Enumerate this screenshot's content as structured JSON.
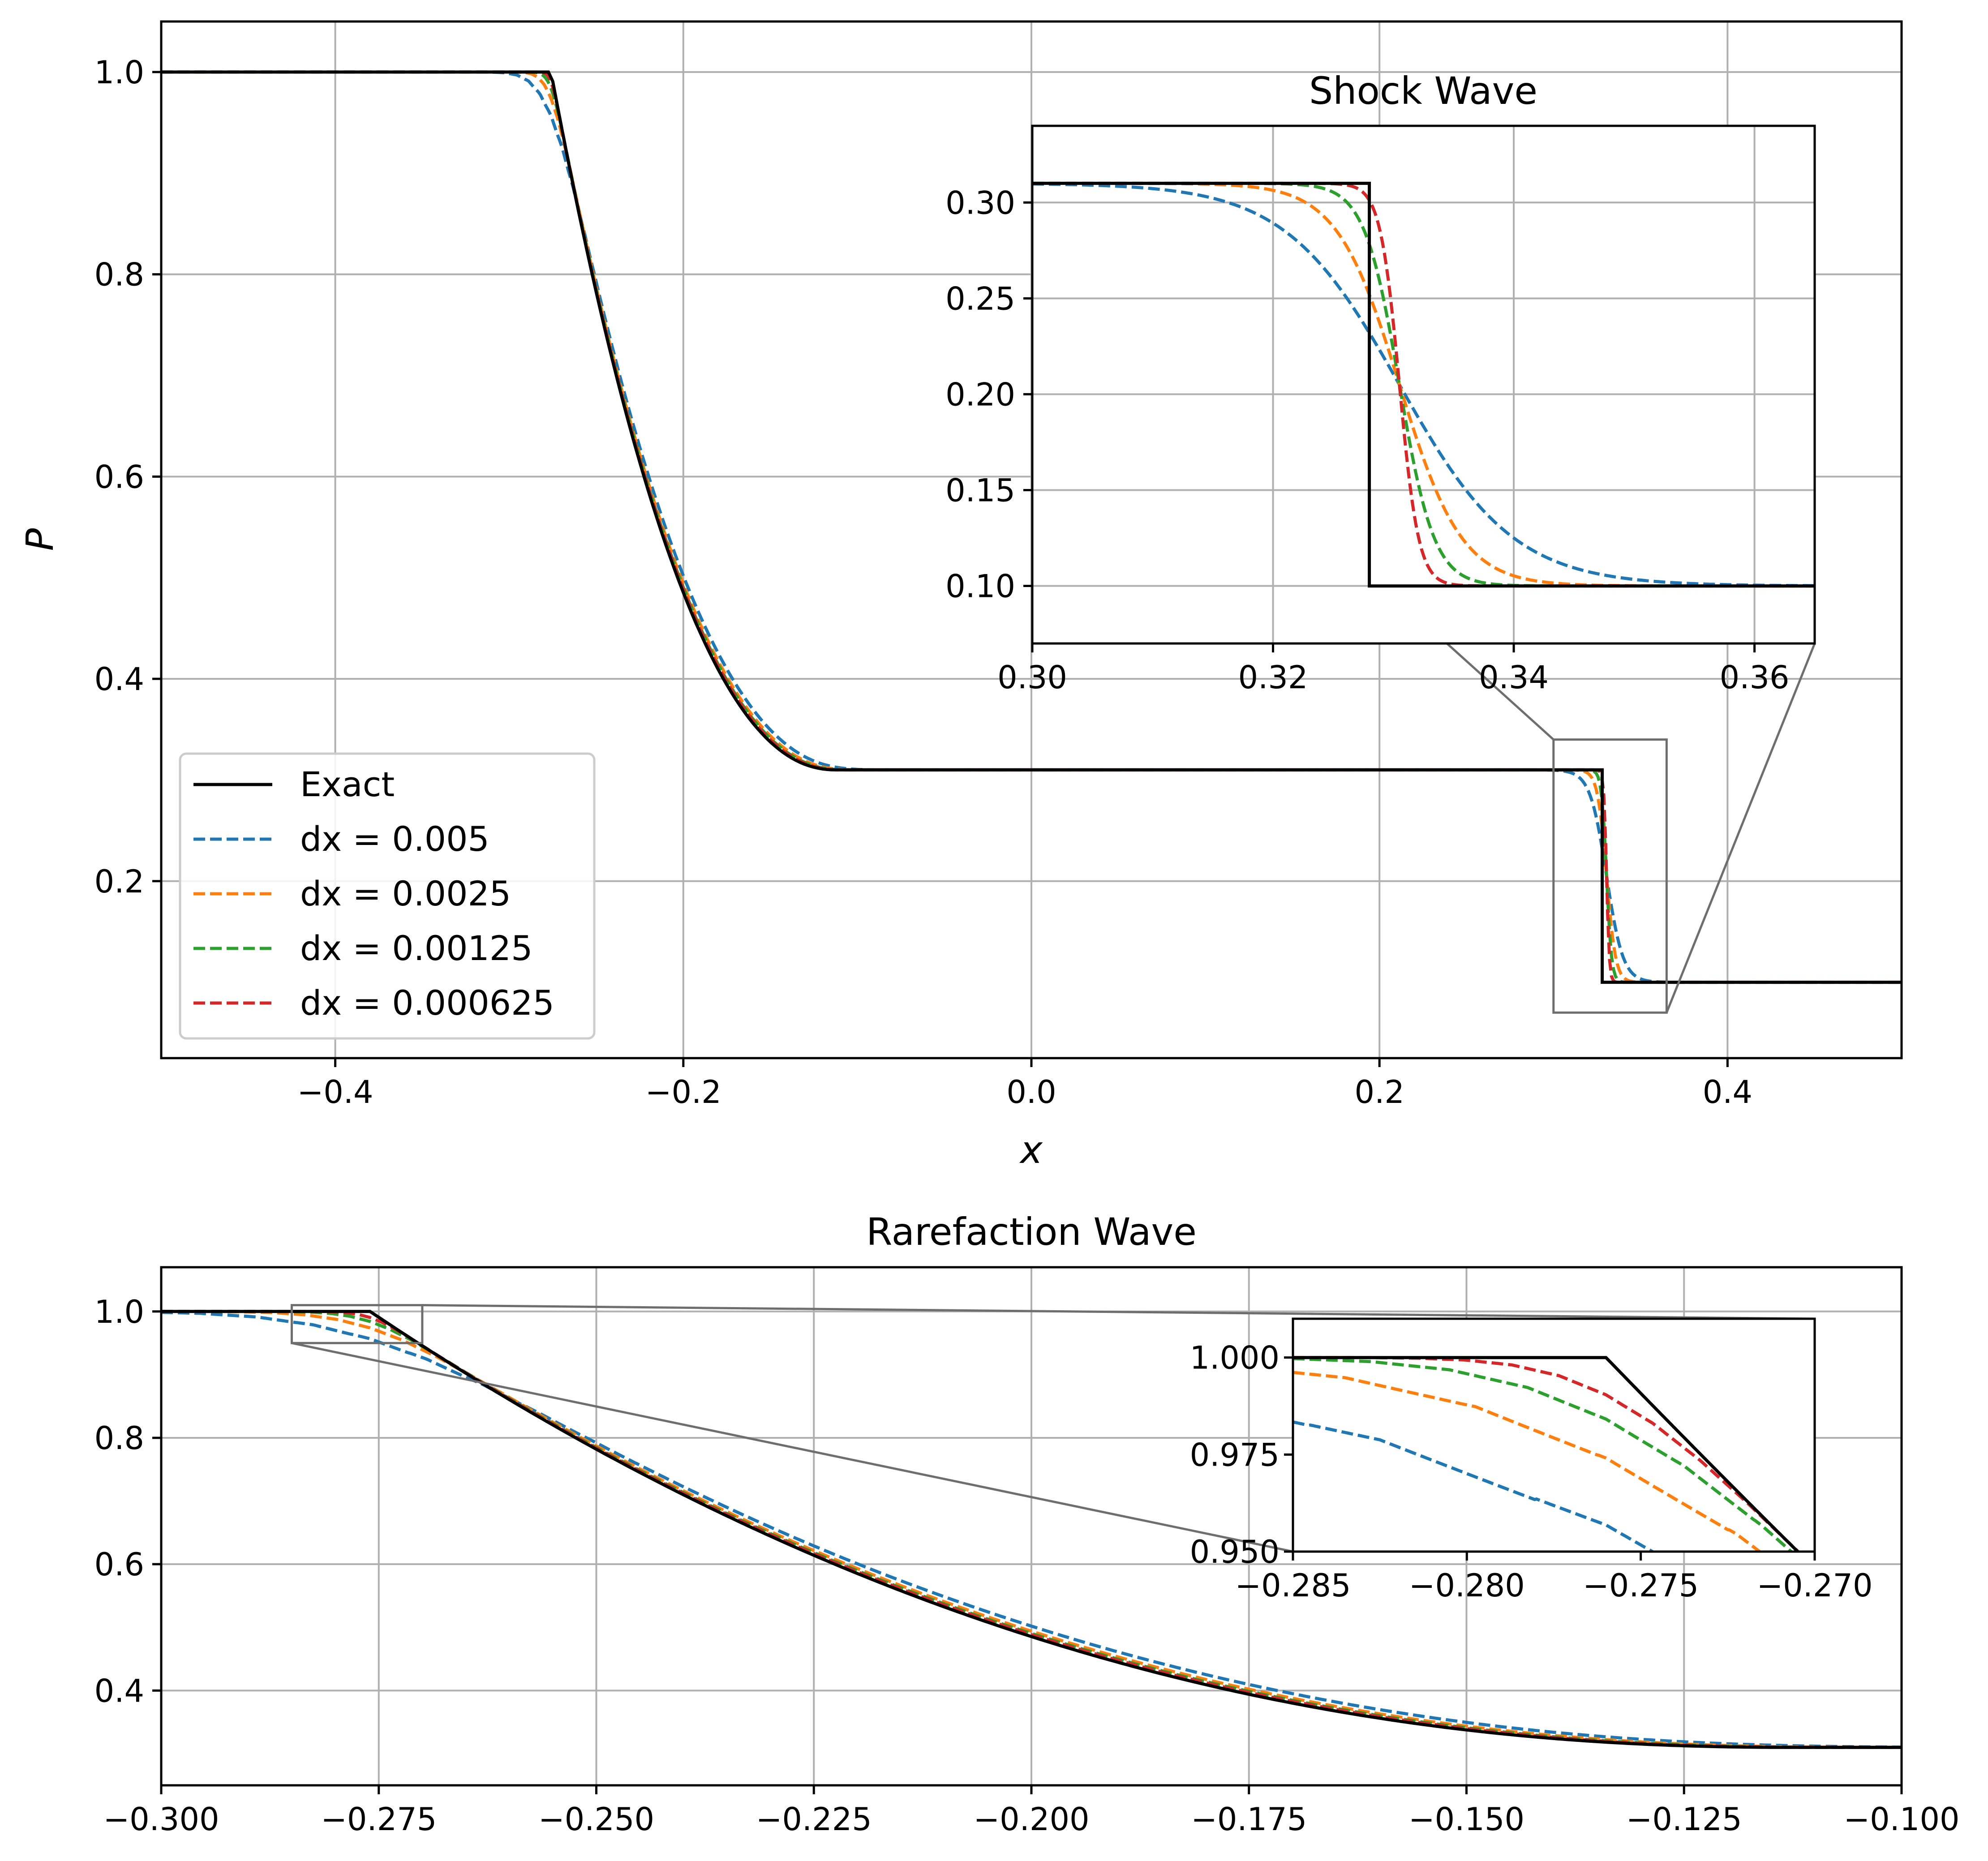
{
  "chart_data": [
    {
      "type": "line",
      "xlabel": "x",
      "ylabel": "P",
      "xlim": [
        -0.5,
        0.5
      ],
      "ylim": [
        0.025,
        1.05
      ],
      "xticks": [
        -0.4,
        -0.2,
        0.0,
        0.2,
        0.4
      ],
      "xtick_labels": [
        "−0.4",
        "−0.2",
        "0.0",
        "0.2",
        "0.4"
      ],
      "yticks": [
        0.2,
        0.4,
        0.6,
        0.8,
        1.0
      ],
      "ytick_labels": [
        "0.2",
        "0.4",
        "0.6",
        "0.8",
        "1.0"
      ],
      "grid": true,
      "legend_position": "lower-left",
      "series": [
        {
          "name": "Exact",
          "color": "#000000",
          "style": "solid"
        },
        {
          "name": "dx = 0.005",
          "color": "#1f77b4",
          "style": "dashed"
        },
        {
          "name": "dx = 0.0025",
          "color": "#ff7f0e",
          "style": "dashed"
        },
        {
          "name": "dx = 0.00125",
          "color": "#2ca02c",
          "style": "dashed"
        },
        {
          "name": "dx = 0.000625",
          "color": "#d62728",
          "style": "dashed"
        }
      ],
      "exact_points": [
        [
          -0.5,
          1.0
        ],
        [
          -0.276,
          1.0
        ],
        [
          -0.25,
          0.79
        ],
        [
          -0.225,
          0.655
        ],
        [
          -0.2,
          0.54
        ],
        [
          -0.175,
          0.455
        ],
        [
          -0.15,
          0.39
        ],
        [
          -0.125,
          0.33
        ],
        [
          -0.112,
          0.31
        ],
        [
          0.328,
          0.31
        ],
        [
          0.328,
          0.1
        ],
        [
          0.5,
          0.1
        ]
      ],
      "inset": {
        "title": "Shock Wave",
        "xlim": [
          0.3,
          0.365
        ],
        "ylim": [
          0.07,
          0.34
        ],
        "xticks": [
          0.3,
          0.32,
          0.34,
          0.36
        ],
        "xtick_labels": [
          "0.30",
          "0.32",
          "0.34",
          "0.36"
        ],
        "yticks": [
          0.1,
          0.15,
          0.2,
          0.25,
          0.3
        ],
        "ytick_labels": [
          "0.10",
          "0.15",
          "0.20",
          "0.25",
          "0.30"
        ]
      }
    },
    {
      "type": "line",
      "title": "Rarefaction Wave",
      "xlim": [
        -0.3,
        -0.1
      ],
      "ylim": [
        0.25,
        1.07
      ],
      "xticks": [
        -0.3,
        -0.275,
        -0.25,
        -0.225,
        -0.2,
        -0.175,
        -0.15,
        -0.125,
        -0.1
      ],
      "xtick_labels": [
        "−0.300",
        "−0.275",
        "−0.250",
        "−0.225",
        "−0.200",
        "−0.175",
        "−0.150",
        "−0.125",
        "−0.100"
      ],
      "yticks": [
        0.4,
        0.6,
        0.8,
        1.0
      ],
      "ytick_labels": [
        "0.4",
        "0.6",
        "0.8",
        "1.0"
      ],
      "grid": true,
      "inset": {
        "xlim": [
          -0.285,
          -0.27
        ],
        "ylim": [
          0.95,
          1.01
        ],
        "xticks": [
          -0.285,
          -0.28,
          -0.275,
          -0.27
        ],
        "xtick_labels": [
          "−0.285",
          "−0.280",
          "−0.275",
          "−0.270"
        ],
        "yticks": [
          0.95,
          0.975,
          1.0
        ],
        "ytick_labels": [
          "0.950",
          "0.975",
          "1.000"
        ]
      }
    }
  ]
}
